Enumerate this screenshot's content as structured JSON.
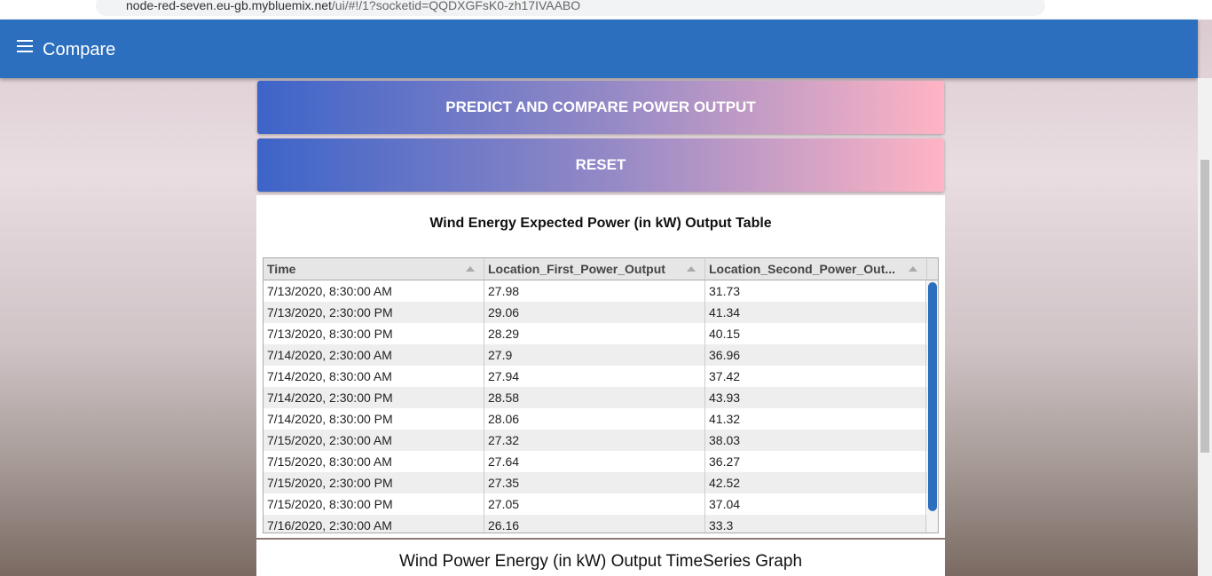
{
  "browser": {
    "url_host": "node-red-seven.eu-gb.mybluemix.net",
    "url_path": "/ui/#!/1?socketid=QQDXGFsK0-zh17IVAABO"
  },
  "header": {
    "title": "Compare"
  },
  "buttons": [
    "PREDICT AND COMPARE POWER OUTPUT",
    "RESET"
  ],
  "table": {
    "title": "Wind Energy Expected Power (in kW) Output Table",
    "columns": [
      "Time",
      "Location_First_Power_Output",
      "Location_Second_Power_Out..."
    ],
    "rows": [
      [
        "7/13/2020, 8:30:00 AM",
        "27.98",
        "31.73"
      ],
      [
        "7/13/2020, 2:30:00 PM",
        "29.06",
        "41.34"
      ],
      [
        "7/13/2020, 8:30:00 PM",
        "28.29",
        "40.15"
      ],
      [
        "7/14/2020, 2:30:00 AM",
        "27.9",
        "36.96"
      ],
      [
        "7/14/2020, 8:30:00 AM",
        "27.94",
        "37.42"
      ],
      [
        "7/14/2020, 2:30:00 PM",
        "28.58",
        "43.93"
      ],
      [
        "7/14/2020, 8:30:00 PM",
        "28.06",
        "41.32"
      ],
      [
        "7/15/2020, 2:30:00 AM",
        "27.32",
        "38.03"
      ],
      [
        "7/15/2020, 8:30:00 AM",
        "27.64",
        "36.27"
      ],
      [
        "7/15/2020, 2:30:00 PM",
        "27.35",
        "42.52"
      ],
      [
        "7/15/2020, 8:30:00 PM",
        "27.05",
        "37.04"
      ],
      [
        "7/16/2020, 2:30:00 AM",
        "26.16",
        "33.3"
      ]
    ]
  },
  "graph": {
    "title": "Wind Power Energy (in kW) Output TimeSeries Graph"
  }
}
